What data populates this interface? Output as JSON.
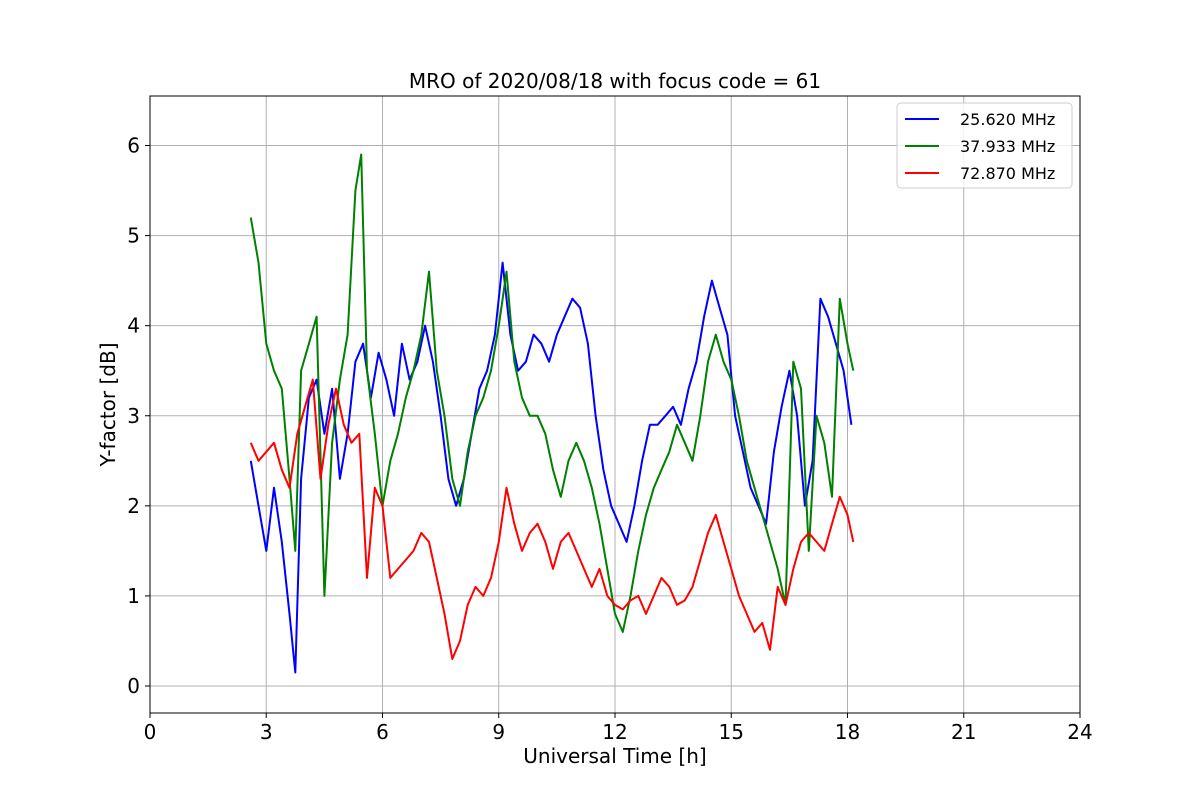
{
  "chart_data": {
    "type": "line",
    "title": "MRO of 2020/08/18 with focus code = 61",
    "xlabel": "Universal Time [h]",
    "ylabel": "Y-factor [dB]",
    "xlim": [
      0,
      24
    ],
    "ylim": [
      -0.3,
      6.55
    ],
    "xticks": [
      0,
      3,
      6,
      9,
      12,
      15,
      18,
      21,
      24
    ],
    "yticks": [
      0,
      1,
      2,
      3,
      4,
      5,
      6
    ],
    "grid": true,
    "legend_position": "top-right",
    "series": [
      {
        "name": "25.620 MHz",
        "color": "#0000ff",
        "x": [
          2.6,
          2.8,
          3.0,
          3.2,
          3.4,
          3.6,
          3.75,
          3.9,
          4.1,
          4.3,
          4.5,
          4.7,
          4.9,
          5.1,
          5.3,
          5.5,
          5.7,
          5.9,
          6.1,
          6.3,
          6.5,
          6.7,
          6.9,
          7.1,
          7.3,
          7.5,
          7.7,
          7.9,
          8.1,
          8.3,
          8.5,
          8.7,
          8.9,
          9.1,
          9.3,
          9.5,
          9.7,
          9.9,
          10.1,
          10.3,
          10.5,
          10.7,
          10.9,
          11.1,
          11.3,
          11.5,
          11.7,
          11.9,
          12.1,
          12.3,
          12.5,
          12.7,
          12.9,
          13.1,
          13.3,
          13.5,
          13.7,
          13.9,
          14.1,
          14.3,
          14.5,
          14.7,
          14.9,
          15.1,
          15.3,
          15.5,
          15.7,
          15.9,
          16.1,
          16.3,
          16.5,
          16.7,
          16.9,
          17.1,
          17.3,
          17.5,
          17.7,
          17.9,
          18.1
        ],
        "values": [
          2.5,
          2.0,
          1.5,
          2.2,
          1.6,
          0.8,
          0.15,
          2.3,
          3.2,
          3.4,
          2.8,
          3.3,
          2.3,
          2.8,
          3.6,
          3.8,
          3.2,
          3.7,
          3.4,
          3.0,
          3.8,
          3.4,
          3.6,
          4.0,
          3.6,
          3.0,
          2.3,
          2.0,
          2.3,
          2.8,
          3.3,
          3.5,
          3.9,
          4.7,
          3.9,
          3.5,
          3.6,
          3.9,
          3.8,
          3.6,
          3.9,
          4.1,
          4.3,
          4.2,
          3.8,
          3.0,
          2.4,
          2.0,
          1.8,
          1.6,
          2.0,
          2.5,
          2.9,
          2.9,
          3.0,
          3.1,
          2.9,
          3.3,
          3.6,
          4.1,
          4.5,
          4.2,
          3.9,
          3.0,
          2.6,
          2.2,
          2.0,
          1.8,
          2.6,
          3.1,
          3.5,
          3.0,
          2.0,
          2.5,
          4.3,
          4.1,
          3.8,
          3.5,
          2.9
        ]
      },
      {
        "name": "37.933 MHz",
        "color": "#008000",
        "x": [
          2.6,
          2.8,
          3.0,
          3.2,
          3.4,
          3.6,
          3.75,
          3.9,
          4.1,
          4.3,
          4.5,
          4.7,
          4.9,
          5.1,
          5.3,
          5.45,
          5.6,
          5.8,
          6.0,
          6.2,
          6.4,
          6.6,
          6.8,
          7.0,
          7.2,
          7.4,
          7.6,
          7.8,
          8.0,
          8.2,
          8.4,
          8.6,
          8.8,
          9.0,
          9.2,
          9.4,
          9.6,
          9.8,
          10.0,
          10.2,
          10.4,
          10.6,
          10.8,
          11.0,
          11.2,
          11.4,
          11.6,
          11.8,
          12.0,
          12.2,
          12.4,
          12.6,
          12.8,
          13.0,
          13.2,
          13.4,
          13.6,
          13.8,
          14.0,
          14.2,
          14.4,
          14.6,
          14.8,
          15.0,
          15.2,
          15.4,
          15.6,
          15.8,
          16.0,
          16.2,
          16.4,
          16.6,
          16.8,
          17.0,
          17.2,
          17.4,
          17.6,
          17.8,
          18.0,
          18.15
        ],
        "values": [
          5.2,
          4.7,
          3.8,
          3.5,
          3.3,
          2.3,
          1.5,
          3.5,
          3.8,
          4.1,
          1.0,
          2.7,
          3.4,
          3.9,
          5.5,
          5.9,
          3.5,
          2.8,
          2.0,
          2.5,
          2.8,
          3.2,
          3.5,
          3.9,
          4.6,
          3.5,
          3.0,
          2.3,
          2.0,
          2.6,
          3.0,
          3.2,
          3.5,
          4.0,
          4.6,
          3.6,
          3.2,
          3.0,
          3.0,
          2.8,
          2.4,
          2.1,
          2.5,
          2.7,
          2.5,
          2.2,
          1.8,
          1.3,
          0.8,
          0.6,
          1.0,
          1.5,
          1.9,
          2.2,
          2.4,
          2.6,
          2.9,
          2.7,
          2.5,
          3.0,
          3.6,
          3.9,
          3.6,
          3.4,
          3.0,
          2.5,
          2.2,
          1.9,
          1.6,
          1.3,
          0.9,
          3.6,
          3.3,
          1.5,
          3.0,
          2.7,
          2.1,
          4.3,
          3.8,
          3.5
        ]
      },
      {
        "name": "72.870 MHz",
        "color": "#ff0000",
        "x": [
          2.6,
          2.8,
          3.0,
          3.2,
          3.4,
          3.6,
          3.8,
          4.0,
          4.2,
          4.4,
          4.6,
          4.8,
          5.0,
          5.2,
          5.4,
          5.6,
          5.8,
          6.0,
          6.2,
          6.4,
          6.6,
          6.8,
          7.0,
          7.2,
          7.4,
          7.6,
          7.8,
          8.0,
          8.2,
          8.4,
          8.6,
          8.8,
          9.0,
          9.2,
          9.4,
          9.6,
          9.8,
          10.0,
          10.2,
          10.4,
          10.6,
          10.8,
          11.0,
          11.2,
          11.4,
          11.6,
          11.8,
          12.0,
          12.2,
          12.4,
          12.6,
          12.8,
          13.0,
          13.2,
          13.4,
          13.6,
          13.8,
          14.0,
          14.2,
          14.4,
          14.6,
          14.8,
          15.0,
          15.2,
          15.4,
          15.6,
          15.8,
          16.0,
          16.2,
          16.4,
          16.6,
          16.8,
          17.0,
          17.2,
          17.4,
          17.6,
          17.8,
          18.0,
          18.15
        ],
        "values": [
          2.7,
          2.5,
          2.6,
          2.7,
          2.4,
          2.2,
          2.8,
          3.1,
          3.4,
          2.3,
          2.9,
          3.3,
          2.9,
          2.7,
          2.8,
          1.2,
          2.2,
          2.0,
          1.2,
          1.3,
          1.4,
          1.5,
          1.7,
          1.6,
          1.2,
          0.8,
          0.3,
          0.5,
          0.9,
          1.1,
          1.0,
          1.2,
          1.6,
          2.2,
          1.8,
          1.5,
          1.7,
          1.8,
          1.6,
          1.3,
          1.6,
          1.7,
          1.5,
          1.3,
          1.1,
          1.3,
          1.0,
          0.9,
          0.85,
          0.95,
          1.0,
          0.8,
          1.0,
          1.2,
          1.1,
          0.9,
          0.95,
          1.1,
          1.4,
          1.7,
          1.9,
          1.6,
          1.3,
          1.0,
          0.8,
          0.6,
          0.7,
          0.4,
          1.1,
          0.9,
          1.3,
          1.6,
          1.7,
          1.6,
          1.5,
          1.8,
          2.1,
          1.9,
          1.6
        ]
      }
    ]
  }
}
